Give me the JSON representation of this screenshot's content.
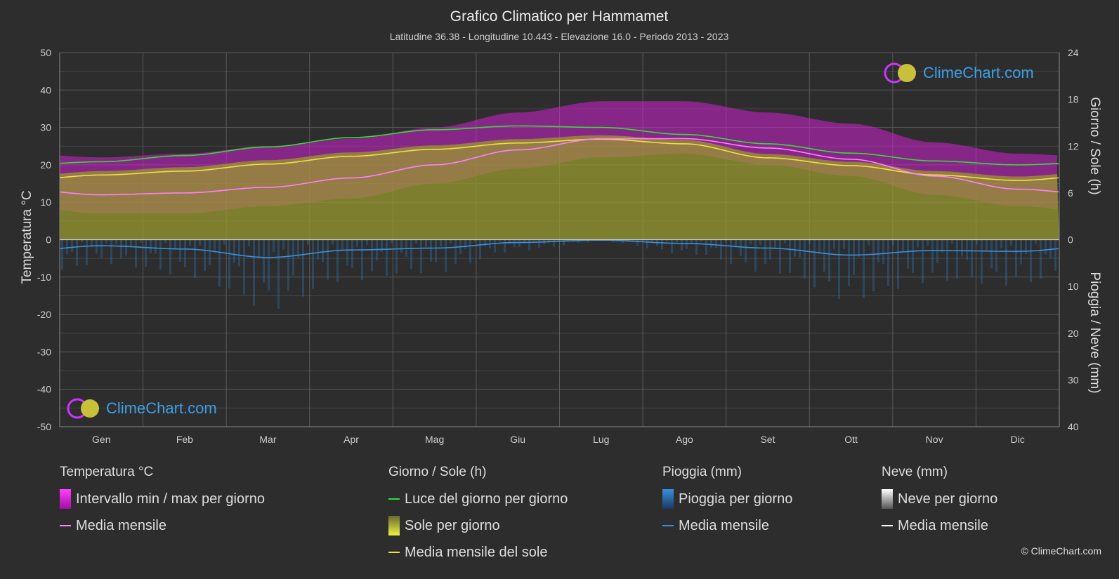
{
  "title": "Grafico Climatico per Hammamet",
  "subtitle": "Latitudine 36.38 - Longitudine 10.443 - Elevazione 16.0 - Periodo 2013 - 2023",
  "logo_text": "ClimeChart.com",
  "copyright": "© ClimeChart.com",
  "colors": {
    "background": "#2d2d2d",
    "temp_range": "#d020d0",
    "temp_mean": "#ff80ff",
    "daylight": "#33dd33",
    "sunshine": "#9a9a30",
    "sunshine_mean": "#f0e040",
    "rain": "#2a7ac0",
    "rain_mean": "#3a90e0",
    "snow": "#ffffff"
  },
  "chart_data": {
    "type": "area",
    "categories": [
      "Gen",
      "Feb",
      "Mar",
      "Apr",
      "Mag",
      "Giu",
      "Lug",
      "Ago",
      "Set",
      "Ott",
      "Nov",
      "Dic"
    ],
    "y_left": {
      "label": "Temperatura °C",
      "min": -50,
      "max": 50,
      "ticks": [
        "50",
        "40",
        "30",
        "20",
        "10",
        "0",
        "-10",
        "-20",
        "-30",
        "-40",
        "-50"
      ]
    },
    "y_right_top": {
      "label": "Giorno / Sole (h)",
      "min": 0,
      "max": 24,
      "ticks": [
        "24",
        "18",
        "12",
        "6",
        "0"
      ]
    },
    "y_right_bottom": {
      "label": "Pioggia / Neve (mm)",
      "min": 0,
      "max": 40,
      "ticks": [
        "0",
        "10",
        "20",
        "30",
        "40"
      ]
    },
    "grid": true,
    "series": {
      "temp_max_daily_avg": [
        19,
        20,
        22,
        24,
        27,
        31,
        34,
        34,
        31,
        28,
        23,
        20
      ],
      "temp_min_daily_avg": [
        7,
        7,
        9,
        11,
        15,
        19,
        22,
        23,
        20,
        17,
        12,
        9
      ],
      "temp_mean_monthly": [
        12.0,
        12.5,
        14.0,
        16.5,
        20.0,
        24.0,
        27.0,
        27.0,
        24.5,
        21.5,
        17.0,
        13.5
      ],
      "daylight_hours": [
        10.0,
        10.8,
        11.9,
        13.1,
        14.1,
        14.6,
        14.4,
        13.5,
        12.3,
        11.1,
        10.1,
        9.6
      ],
      "sunshine_hours_mean": [
        8.3,
        8.8,
        9.7,
        10.7,
        11.6,
        12.4,
        12.9,
        12.3,
        10.5,
        9.5,
        8.3,
        7.6
      ],
      "rain_mean_monthly_mm": [
        1.3,
        2.0,
        3.8,
        2.2,
        1.8,
        0.6,
        0.1,
        0.8,
        1.8,
        3.3,
        2.3,
        2.5
      ]
    }
  },
  "legend": {
    "temp": {
      "title": "Temperatura °C",
      "items": [
        "Intervallo min / max per giorno",
        "Media mensile"
      ]
    },
    "sun": {
      "title": "Giorno / Sole (h)",
      "items": [
        "Luce del giorno per giorno",
        "Sole per giorno",
        "Media mensile del sole"
      ]
    },
    "rain": {
      "title": "Pioggia (mm)",
      "items": [
        "Pioggia per giorno",
        "Media mensile"
      ]
    },
    "snow": {
      "title": "Neve (mm)",
      "items": [
        "Neve per giorno",
        "Media mensile"
      ]
    }
  }
}
